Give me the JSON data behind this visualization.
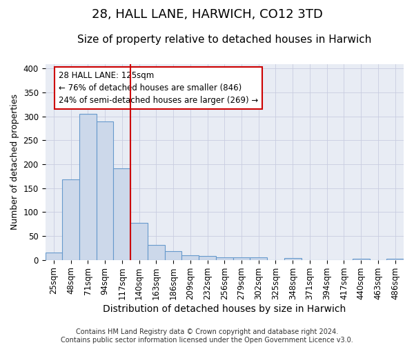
{
  "title": "28, HALL LANE, HARWICH, CO12 3TD",
  "subtitle": "Size of property relative to detached houses in Harwich",
  "xlabel": "Distribution of detached houses by size in Harwich",
  "ylabel": "Number of detached properties",
  "footer_line1": "Contains HM Land Registry data © Crown copyright and database right 2024.",
  "footer_line2": "Contains public sector information licensed under the Open Government Licence v3.0.",
  "categories": [
    "25sqm",
    "48sqm",
    "71sqm",
    "94sqm",
    "117sqm",
    "140sqm",
    "163sqm",
    "186sqm",
    "209sqm",
    "232sqm",
    "256sqm",
    "279sqm",
    "302sqm",
    "325sqm",
    "348sqm",
    "371sqm",
    "394sqm",
    "417sqm",
    "440sqm",
    "463sqm",
    "486sqm"
  ],
  "values": [
    15,
    168,
    306,
    290,
    191,
    78,
    32,
    19,
    9,
    8,
    6,
    5,
    5,
    0,
    4,
    0,
    0,
    0,
    2,
    0,
    2
  ],
  "bar_color": "#ccd8ea",
  "bar_edge_color": "#6699cc",
  "grid_color": "#c8cce0",
  "background_color": "#e8ecf4",
  "property_line_color": "#cc0000",
  "property_line_index": 4,
  "annotation_line1": "28 HALL LANE: 125sqm",
  "annotation_line2": "← 76% of detached houses are smaller (846)",
  "annotation_line3": "24% of semi-detached houses are larger (269) →",
  "annotation_box_color": "#cc0000",
  "ylim": [
    0,
    410
  ],
  "title_fontsize": 13,
  "subtitle_fontsize": 11,
  "tick_fontsize": 8.5,
  "ylabel_fontsize": 9,
  "xlabel_fontsize": 10,
  "footer_fontsize": 7
}
